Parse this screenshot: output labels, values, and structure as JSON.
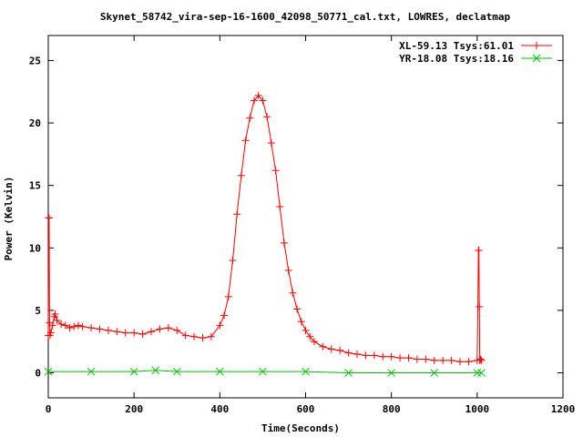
{
  "chart_data": {
    "type": "line",
    "title": "Skynet_58742_vira-sep-16-1600_42098_50771_cal.txt, LOWRES, declatmap",
    "xlabel": "Time(Seconds)",
    "ylabel": "Power (Kelvin)",
    "xlim": [
      0,
      1200
    ],
    "ylim": [
      -2,
      27
    ],
    "xticks": [
      0,
      200,
      400,
      600,
      800,
      1000,
      1200
    ],
    "yticks": [
      0,
      5,
      10,
      15,
      20,
      25
    ],
    "grid": false,
    "legend_position": "top-right",
    "series": [
      {
        "name": "XL-59.13 Tsys:61.01",
        "color": "#ff0000",
        "marker": "plus",
        "x": [
          0,
          1,
          2,
          3,
          4,
          6,
          10,
          14,
          16,
          20,
          30,
          40,
          50,
          60,
          70,
          80,
          100,
          120,
          140,
          160,
          180,
          200,
          220,
          240,
          260,
          280,
          300,
          320,
          340,
          360,
          380,
          400,
          410,
          420,
          430,
          440,
          450,
          460,
          470,
          480,
          490,
          500,
          510,
          520,
          530,
          540,
          550,
          560,
          570,
          580,
          590,
          600,
          610,
          620,
          640,
          660,
          680,
          700,
          720,
          740,
          760,
          780,
          800,
          820,
          840,
          860,
          880,
          900,
          920,
          940,
          960,
          980,
          1000,
          1003,
          1004,
          1005,
          1006,
          1008,
          1010
        ],
        "y": [
          3.0,
          12.4,
          12.4,
          4.0,
          3.0,
          3.2,
          3.8,
          4.5,
          4.7,
          4.2,
          3.9,
          3.8,
          3.6,
          3.7,
          3.8,
          3.7,
          3.6,
          3.5,
          3.4,
          3.3,
          3.2,
          3.2,
          3.1,
          3.3,
          3.5,
          3.6,
          3.4,
          3.0,
          2.9,
          2.8,
          2.9,
          3.8,
          4.6,
          6.1,
          9.0,
          12.7,
          15.8,
          18.6,
          20.4,
          21.8,
          22.2,
          21.8,
          20.5,
          18.4,
          16.2,
          13.3,
          10.4,
          8.2,
          6.4,
          5.1,
          4.1,
          3.4,
          2.9,
          2.5,
          2.1,
          1.9,
          1.8,
          1.6,
          1.5,
          1.4,
          1.4,
          1.3,
          1.3,
          1.2,
          1.2,
          1.1,
          1.1,
          1.0,
          1.0,
          1.0,
          0.9,
          0.9,
          1.0,
          9.8,
          9.8,
          5.3,
          1.0,
          1.1,
          1.0
        ]
      },
      {
        "name": "YR-18.08 Tsys:18.16",
        "color": "#00c000",
        "marker": "cross",
        "x": [
          0,
          100,
          200,
          250,
          300,
          400,
          500,
          600,
          700,
          800,
          900,
          1000,
          1010
        ],
        "y": [
          0.1,
          0.1,
          0.1,
          0.2,
          0.1,
          0.1,
          0.1,
          0.1,
          0.0,
          0.0,
          0.0,
          0.0,
          0.0
        ]
      }
    ]
  }
}
